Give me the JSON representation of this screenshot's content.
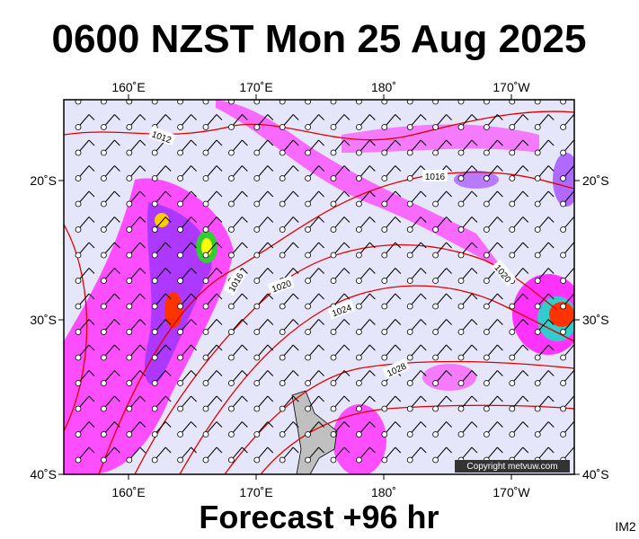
{
  "header": {
    "title": "0600 NZST Mon 25 Aug 2025"
  },
  "map": {
    "lon_labels": [
      "160˚E",
      "170˚E",
      "180˚",
      "170˚W"
    ],
    "lat_labels": [
      "20˚S",
      "30˚S",
      "40˚S"
    ],
    "isobar_labels": [
      "1012",
      "1016",
      "1016",
      "1020",
      "1020",
      "1024",
      "1028"
    ],
    "copyright": "Copyright metvuw.com"
  },
  "footer": {
    "forecast": "Forecast +96 hr",
    "code": "IM2"
  }
}
